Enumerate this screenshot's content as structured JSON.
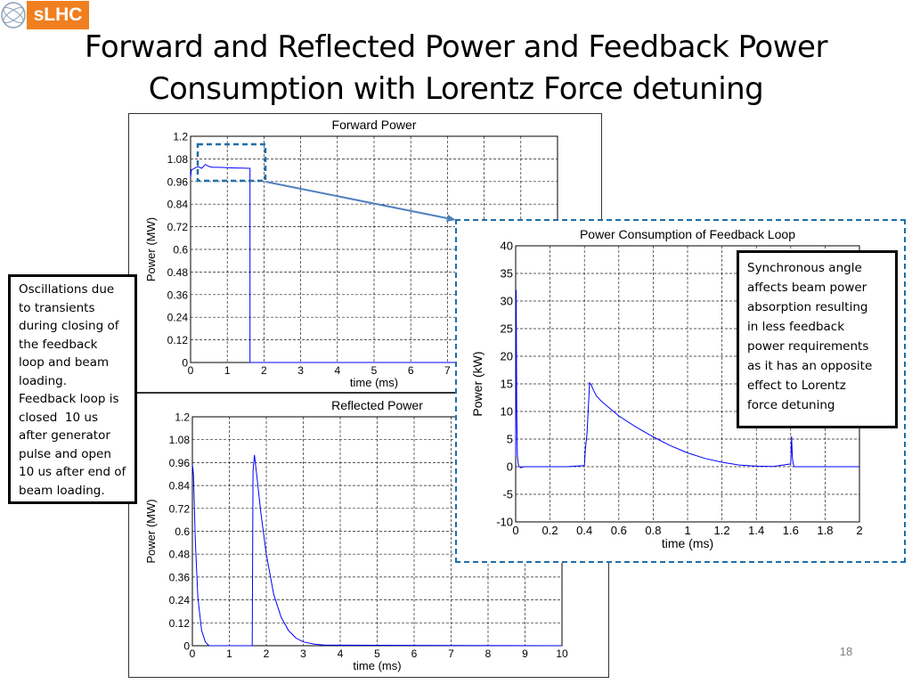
{
  "logo": {
    "text": "sLHC",
    "emblem_text": "CERN"
  },
  "slide": {
    "title_line1": "Forward and Reflected Power and Feedback Power",
    "title_line2": "Consumption with Lorentz Force detuning",
    "page_number": "18"
  },
  "notes": {
    "left": [
      "Oscillations due",
      "to transients",
      "during closing of",
      "the feedback",
      "loop and beam",
      "loading.",
      "Feedback loop is",
      "closed  10 us",
      "after generator",
      "pulse and open",
      "10 us after end of",
      "beam loading."
    ],
    "right": [
      "Synchronous angle",
      "affects beam power",
      "absorption resulting",
      "in less feedback",
      "power requirements",
      "as it has an opposite",
      "effect to Lorentz",
      "force detuning"
    ]
  },
  "colors": {
    "logo_orange": "#f07f1f",
    "trace_blue": "#0000ff",
    "highlight_blue": "#1f6fa8"
  },
  "chart_data": [
    {
      "type": "line",
      "title": "Forward Power",
      "xlabel": "time (ms)",
      "ylabel": "Power (MW)",
      "xlim": [
        0,
        10
      ],
      "ylim": [
        0,
        1.2
      ],
      "xticks": [
        "0",
        "1",
        "2",
        "3",
        "4",
        "5",
        "6",
        "7"
      ],
      "yticks": [
        "0",
        "0.12",
        "0.24",
        "0.36",
        "0.48",
        "0.6",
        "0.72",
        "0.84",
        "0.96",
        "1.08",
        "1.2"
      ],
      "grid": true,
      "series": [
        {
          "x": [
            0,
            0.02,
            0.1,
            0.2,
            0.3,
            0.4,
            0.5,
            0.6,
            0.8,
            1.0,
            1.2,
            1.4,
            1.6,
            1.62,
            1.62,
            1.64,
            10
          ],
          "y": [
            0.98,
            1.02,
            1.03,
            1.04,
            1.03,
            1.05,
            1.04,
            1.035,
            1.035,
            1.033,
            1.032,
            1.031,
            1.03,
            1.03,
            0,
            0,
            0
          ]
        }
      ]
    },
    {
      "type": "line",
      "title": "Reflected Power",
      "xlabel": "time (ms)",
      "ylabel": "Power (MW)",
      "xlim": [
        0,
        10
      ],
      "ylim": [
        0,
        1.2
      ],
      "xticks": [
        "0",
        "1",
        "2",
        "3",
        "4",
        "5",
        "6",
        "7",
        "8",
        "9",
        "10"
      ],
      "yticks": [
        "0",
        "0.12",
        "0.24",
        "0.36",
        "0.48",
        "0.6",
        "0.72",
        "0.84",
        "0.96",
        "1.08",
        "1.2"
      ],
      "grid": true,
      "series": [
        {
          "x": [
            0,
            0.03,
            0.08,
            0.15,
            0.25,
            0.35,
            0.45,
            1.62,
            1.64,
            1.68,
            1.75,
            1.85,
            2.0,
            2.2,
            2.4,
            2.6,
            2.8,
            3.0,
            3.3,
            3.6,
            10
          ],
          "y": [
            0.95,
            0.9,
            0.55,
            0.25,
            0.08,
            0.02,
            0,
            0,
            0.92,
            1.0,
            0.88,
            0.7,
            0.48,
            0.27,
            0.15,
            0.08,
            0.04,
            0.02,
            0.008,
            0.003,
            0
          ]
        }
      ]
    },
    {
      "type": "line",
      "title": "Power Consumption of Feedback Loop",
      "xlabel": "time (ms)",
      "ylabel": "Power (kW)",
      "xlim": [
        0,
        2
      ],
      "ylim": [
        -10,
        40
      ],
      "xticks": [
        "0",
        "0.2",
        "0.4",
        "0.6",
        "0.8",
        "1",
        "1.2",
        "1.4",
        "1.6",
        "1.8",
        "2"
      ],
      "yticks": [
        "-10",
        "-5",
        "0",
        "5",
        "10",
        "15",
        "20",
        "25",
        "30",
        "35",
        "40"
      ],
      "grid": true,
      "series": [
        {
          "x": [
            0,
            0.003,
            0.006,
            0.01,
            0.015,
            0.02,
            0.03,
            0.05,
            0.1,
            0.2,
            0.3,
            0.4,
            0.405,
            0.415,
            0.425,
            0.43,
            0.44,
            0.45,
            0.47,
            0.5,
            0.6,
            0.7,
            0.8,
            0.9,
            1.0,
            1.1,
            1.2,
            1.3,
            1.4,
            1.5,
            1.6,
            1.605,
            1.61,
            1.615,
            1.62,
            1.63,
            1.7,
            2.0
          ],
          "y": [
            2,
            32,
            10,
            2,
            0.5,
            0,
            -0.2,
            0,
            0,
            0,
            0,
            0.2,
            3,
            6,
            12,
            15.2,
            14.8,
            14,
            12.8,
            11.8,
            9.2,
            7.2,
            5.4,
            3.8,
            2.5,
            1.5,
            0.8,
            0.3,
            0.1,
            0.05,
            0.5,
            5.5,
            1.5,
            0.5,
            0,
            0,
            0,
            0
          ]
        }
      ]
    }
  ]
}
